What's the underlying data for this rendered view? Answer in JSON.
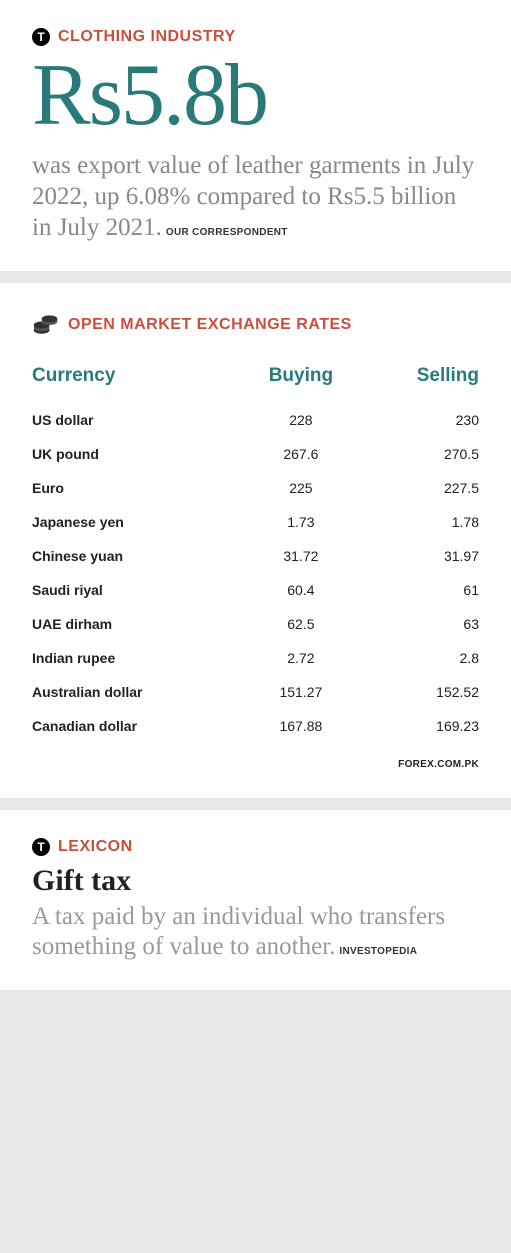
{
  "clothing": {
    "kicker": "CLOTHING INDUSTRY",
    "headline": "Rs5.8b",
    "subhead": "was export value of leather garments in July 2022, up 6.08% compared to Rs5.5 billion in July 2021.",
    "byline": "OUR CORRESPONDENT"
  },
  "rates": {
    "kicker": "OPEN MARKET EXCHANGE RATES",
    "columns": [
      "Currency",
      "Buying",
      "Selling"
    ],
    "rows": [
      {
        "currency": "US dollar",
        "buying": "228",
        "selling": "230"
      },
      {
        "currency": "UK pound",
        "buying": "267.6",
        "selling": "270.5"
      },
      {
        "currency": "Euro",
        "buying": "225",
        "selling": "227.5"
      },
      {
        "currency": "Japanese yen",
        "buying": "1.73",
        "selling": "1.78"
      },
      {
        "currency": "Chinese yuan",
        "buying": "31.72",
        "selling": "31.97"
      },
      {
        "currency": "Saudi riyal",
        "buying": "60.4",
        "selling": "61"
      },
      {
        "currency": "UAE dirham",
        "buying": "62.5",
        "selling": "63"
      },
      {
        "currency": "Indian rupee",
        "buying": "2.72",
        "selling": "2.8"
      },
      {
        "currency": "Australian dollar",
        "buying": "151.27",
        "selling": "152.52"
      },
      {
        "currency": "Canadian dollar",
        "buying": "167.88",
        "selling": "169.23"
      }
    ],
    "source": "FOREX.COM.PK"
  },
  "lexicon": {
    "kicker": "LEXICON",
    "term": "Gift tax",
    "definition": "A tax paid by an individual who transfers something of value to another.",
    "source": "INVESTOPEDIA"
  },
  "colors": {
    "accent_teal": "#2a7a7a",
    "accent_red": "#c94f3f",
    "muted_text": "#888",
    "body_text": "#222",
    "page_bg": "#e8e8e8"
  }
}
